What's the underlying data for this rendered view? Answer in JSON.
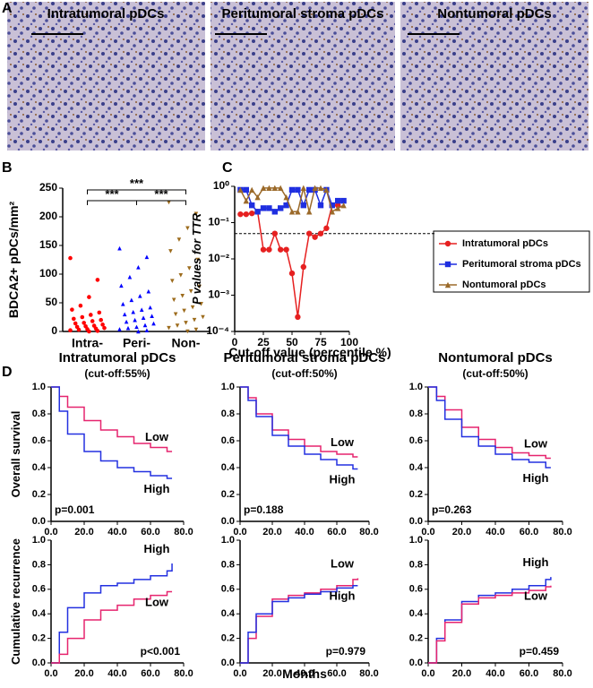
{
  "panel_labels": [
    "A",
    "B",
    "C",
    "D"
  ],
  "panel_a": {
    "images": [
      {
        "title": "Intratumoral pDCs"
      },
      {
        "title": "Peritumoral stroma pDCs"
      },
      {
        "title": "Nontumoral pDCs"
      }
    ]
  },
  "panel_d": {
    "columns": [
      {
        "title": "Intratumoral pDCs",
        "subtitle": "(cut-off:55%)"
      },
      {
        "title": "Peritumoral stroma pDCs",
        "subtitle": "(cut-off:50%)"
      },
      {
        "title": "Nontumoral pDCs",
        "subtitle": "(cut-off:50%)"
      }
    ],
    "x_label": "Months"
  },
  "chart_data": [
    {
      "type": "strip",
      "y_label": "BDCA2+ pDCs/mm²",
      "categories": [
        "Intra-",
        "Peri-",
        "Non-"
      ],
      "colors": [
        "#ff0000",
        "#0000ff",
        "#9c6b1c"
      ],
      "markers": [
        "circle",
        "triangle",
        "triangle-down"
      ],
      "values": [
        [
          128,
          90,
          60,
          45,
          38,
          33,
          29,
          25,
          22,
          20,
          18,
          15,
          14,
          12,
          10,
          9,
          8,
          6,
          5,
          4,
          3,
          2,
          1,
          0
        ],
        [
          145,
          130,
          112,
          95,
          80,
          70,
          62,
          55,
          48,
          42,
          38,
          34,
          30,
          27,
          24,
          20,
          17,
          14,
          11,
          8,
          6,
          4,
          2,
          0
        ],
        [
          225,
          205,
          180,
          160,
          140,
          125,
          110,
          98,
          88,
          78,
          70,
          62,
          55,
          48,
          42,
          36,
          30,
          25,
          20,
          15,
          10,
          6,
          3,
          0
        ]
      ],
      "annotations": [
        "***",
        "***",
        "***"
      ],
      "ylim": [
        0,
        250
      ],
      "yticks": [
        0,
        50,
        100,
        150,
        200,
        250
      ]
    },
    {
      "type": "line",
      "y_label": "P values for TTR",
      "x_label": "Cut-off value (percentile %)",
      "log_y": true,
      "x": [
        5,
        10,
        15,
        20,
        25,
        30,
        35,
        40,
        45,
        50,
        55,
        60,
        65,
        70,
        75,
        80,
        85,
        90,
        95
      ],
      "series": [
        {
          "name": "Intratumoral pDCs",
          "color": "#e62020",
          "marker": "circle",
          "values": [
            0.17,
            0.17,
            0.18,
            0.2,
            0.018,
            0.018,
            0.05,
            0.018,
            0.018,
            0.004,
            0.00025,
            0.006,
            0.05,
            0.04,
            0.05,
            0.07,
            0.3,
            0.3,
            null
          ]
        },
        {
          "name": "Peritumoral stroma pDCs",
          "color": "#1f2fe0",
          "marker": "square",
          "values": [
            0.8,
            0.8,
            0.3,
            0.2,
            0.25,
            0.25,
            0.2,
            0.25,
            0.3,
            0.8,
            0.8,
            0.3,
            0.8,
            0.8,
            0.3,
            0.8,
            0.3,
            0.4,
            0.4
          ]
        },
        {
          "name": "Nontumoral pDCs",
          "color": "#9b6a2a",
          "marker": "triangle",
          "values": [
            0.8,
            0.4,
            0.8,
            0.5,
            0.9,
            0.9,
            0.9,
            0.9,
            0.5,
            0.2,
            0.2,
            0.9,
            0.2,
            0.9,
            0.9,
            0.8,
            0.2,
            0.25,
            0.3
          ]
        }
      ],
      "threshold": 0.05,
      "xlim": [
        0,
        100
      ],
      "xticks": [
        0,
        25,
        50,
        75,
        100
      ],
      "ylim": [
        0.0001,
        1
      ],
      "yticks": [
        {
          "value": 1,
          "label": "10⁰"
        },
        {
          "value": 0.1,
          "label": "10⁻¹"
        },
        {
          "value": 0.01,
          "label": "10⁻²"
        },
        {
          "value": 0.001,
          "label": "10⁻³"
        },
        {
          "value": 0.0001,
          "label": "10⁻⁴"
        }
      ],
      "legend": "right"
    },
    {
      "type": "step",
      "y_label": "Overall survival",
      "annotation": "p=0.001",
      "x": [
        0,
        5,
        10,
        20,
        30,
        40,
        50,
        60,
        70,
        73
      ],
      "series": [
        {
          "name": "Low",
          "color": "#e6246e",
          "values": [
            1,
            0.93,
            0.85,
            0.75,
            0.68,
            0.63,
            0.58,
            0.55,
            0.52,
            0.52
          ]
        },
        {
          "name": "High",
          "color": "#2330e0",
          "values": [
            1,
            0.82,
            0.65,
            0.52,
            0.45,
            0.4,
            0.37,
            0.34,
            0.32,
            0.32
          ]
        }
      ]
    },
    {
      "type": "step",
      "annotation": "p=0.188",
      "x": [
        0,
        5,
        10,
        20,
        30,
        40,
        50,
        60,
        70,
        73
      ],
      "series": [
        {
          "name": "Low",
          "color": "#e6246e",
          "values": [
            1,
            0.92,
            0.8,
            0.68,
            0.61,
            0.56,
            0.52,
            0.5,
            0.48,
            0.48
          ]
        },
        {
          "name": "High",
          "color": "#2330e0",
          "values": [
            1,
            0.9,
            0.78,
            0.64,
            0.56,
            0.5,
            0.46,
            0.42,
            0.39,
            0.39
          ]
        }
      ]
    },
    {
      "type": "step",
      "annotation": "p=0.263",
      "x": [
        0,
        5,
        10,
        20,
        30,
        40,
        50,
        60,
        70,
        73
      ],
      "series": [
        {
          "name": "Low",
          "color": "#e6246e",
          "values": [
            1,
            0.93,
            0.83,
            0.7,
            0.61,
            0.55,
            0.51,
            0.49,
            0.47,
            0.47
          ]
        },
        {
          "name": "High",
          "color": "#2330e0",
          "values": [
            1,
            0.9,
            0.76,
            0.63,
            0.56,
            0.5,
            0.46,
            0.44,
            0.4,
            0.4
          ]
        }
      ]
    },
    {
      "type": "step",
      "y_label": "Cumulative recurrence",
      "annotation": "p<0.001",
      "x": [
        0,
        5,
        10,
        20,
        30,
        40,
        50,
        60,
        70,
        73
      ],
      "series": [
        {
          "name": "High",
          "color": "#2330e0",
          "values": [
            0,
            0.25,
            0.45,
            0.57,
            0.63,
            0.65,
            0.68,
            0.71,
            0.75,
            0.81
          ]
        },
        {
          "name": "Low",
          "color": "#e6246e",
          "values": [
            0,
            0.07,
            0.2,
            0.35,
            0.43,
            0.47,
            0.52,
            0.55,
            0.58,
            0.58
          ]
        }
      ]
    },
    {
      "type": "step",
      "annotation": "p=0.979",
      "x": [
        0,
        5,
        10,
        20,
        30,
        40,
        50,
        60,
        70,
        73
      ],
      "series": [
        {
          "name": "Low",
          "color": "#e6246e",
          "values": [
            0,
            0.2,
            0.38,
            0.52,
            0.55,
            0.57,
            0.6,
            0.63,
            0.68,
            0.69
          ]
        },
        {
          "name": "High",
          "color": "#2330e0",
          "values": [
            0,
            0.25,
            0.4,
            0.5,
            0.53,
            0.56,
            0.58,
            0.61,
            0.63,
            0.63
          ]
        }
      ]
    },
    {
      "type": "step",
      "annotation": "p=0.459",
      "x": [
        0,
        5,
        10,
        20,
        30,
        40,
        50,
        60,
        70,
        73
      ],
      "series": [
        {
          "name": "High",
          "color": "#2330e0",
          "values": [
            0,
            0.2,
            0.35,
            0.5,
            0.55,
            0.57,
            0.6,
            0.63,
            0.68,
            0.7
          ]
        },
        {
          "name": "Low",
          "color": "#e6246e",
          "values": [
            0,
            0.18,
            0.33,
            0.48,
            0.53,
            0.55,
            0.57,
            0.59,
            0.62,
            0.63
          ]
        }
      ]
    }
  ],
  "d_axes": {
    "xlim": [
      0,
      80
    ],
    "xticks": [
      {
        "value": 0,
        "label": "0.0"
      },
      {
        "value": 20,
        "label": "20.0"
      },
      {
        "value": 40,
        "label": "40.0"
      },
      {
        "value": 60,
        "label": "60.0"
      },
      {
        "value": 80,
        "label": "80.0"
      }
    ],
    "ylim": [
      0,
      1
    ],
    "yticks": [
      {
        "value": 0,
        "label": "0.0"
      },
      {
        "value": 0.2,
        "label": "0.2"
      },
      {
        "value": 0.4,
        "label": "0.4"
      },
      {
        "value": 0.6,
        "label": "0.6"
      },
      {
        "value": 0.8,
        "label": "0.8"
      },
      {
        "value": 1,
        "label": "1.0"
      }
    ]
  }
}
